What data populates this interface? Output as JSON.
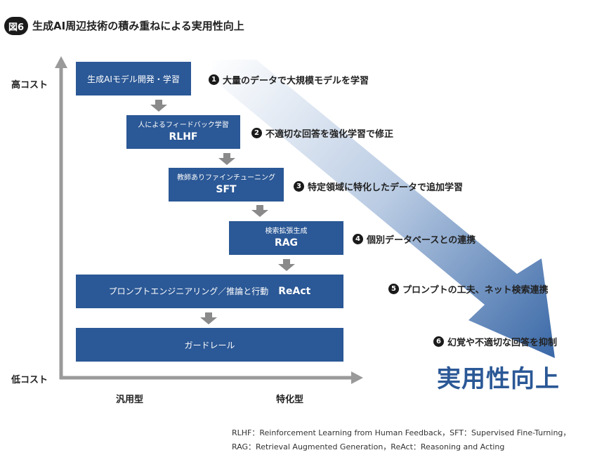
{
  "figure": {
    "number": "図6",
    "title": "生成AI周辺技術の積み重ねによる実用性向上"
  },
  "axes": {
    "y_high": "高コスト",
    "y_low": "低コスト",
    "x_left": "汎用型",
    "x_right": "特化型"
  },
  "boxes": {
    "gen_ai": {
      "label": "生成AIモデル開発・学習"
    },
    "rlhf": {
      "sub": "人によるフィードバック学習",
      "main": "RLHF"
    },
    "sft": {
      "sub": "教師ありファインチューニング",
      "main": "SFT"
    },
    "rag": {
      "sub": "検索拡張生成",
      "main": "RAG"
    },
    "react": {
      "sub": "プロンプトエンジニアリング／推論と行動",
      "main": "ReAct"
    },
    "guard": {
      "label": "ガードレール"
    }
  },
  "steps": [
    {
      "num": "1",
      "text": "大量のデータで大規模モデルを学習"
    },
    {
      "num": "2",
      "text": "不適切な回答を強化学習で修正"
    },
    {
      "num": "3",
      "text": "特定領域に特化したデータで追加学習"
    },
    {
      "num": "4",
      "text": "個別データベースとの連携"
    },
    {
      "num": "5",
      "text": "プロンプトの工夫、ネット検索連携"
    },
    {
      "num": "6",
      "text": "幻覚や不適切な回答を抑制"
    }
  ],
  "result": "実用性向上",
  "footnote": {
    "line1": "RLHF：Reinforcement Learning from Human Feedback，SFT：Supervised Fine-Turning，",
    "line2": "RAG：Retrieval Augmented Generation，ReAct：Reasoning and Acting"
  },
  "colors": {
    "box": "#2b5896",
    "axis": "#9a9a9a",
    "connector": "#8a8a8a",
    "result": "#2b5896"
  }
}
